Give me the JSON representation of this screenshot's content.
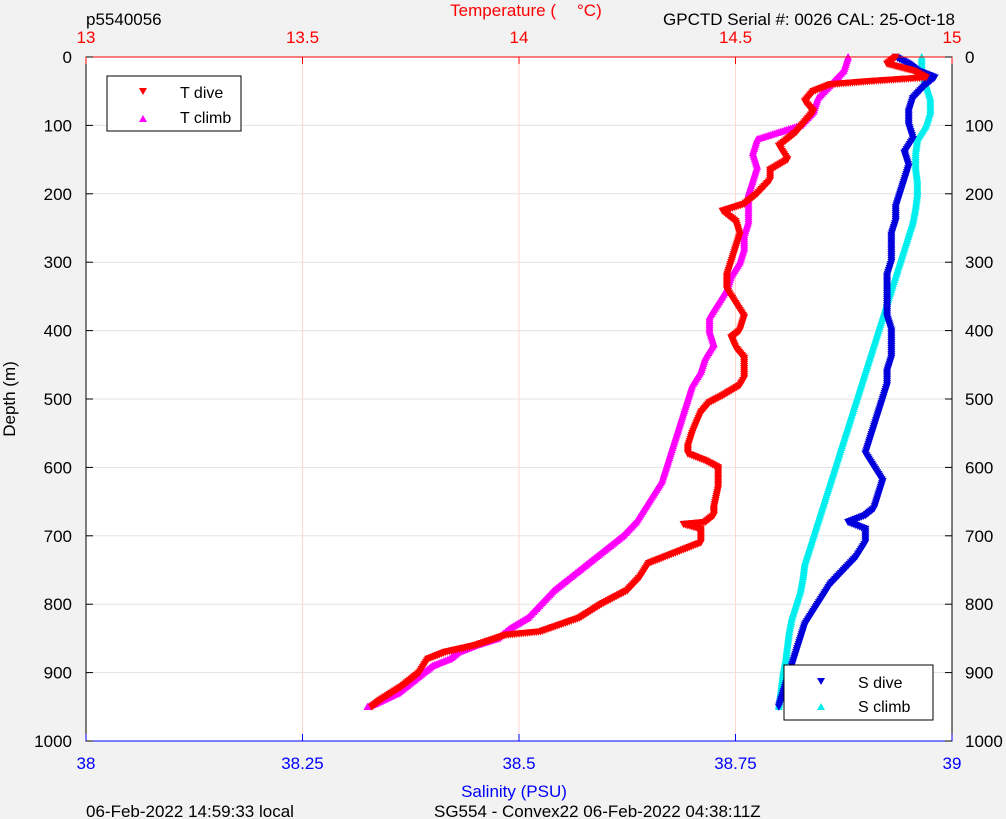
{
  "header": {
    "left_id": "p5540056",
    "right_info": "GPCTD Serial #: 0026 CAL: 25-Oct-18"
  },
  "footer": {
    "left": "06-Feb-2022 14:59:33 local",
    "center": "SG554 - Convex22 06-Feb-2022 04:38:11Z"
  },
  "colors": {
    "t_dive": "#ff0000",
    "t_climb": "#ff00ff",
    "s_dive": "#0000dd",
    "s_climb": "#00eeee",
    "temp_axis": "#ff0000",
    "sal_axis": "#0000ff",
    "temp_grid": "#ffd6d6",
    "depth_grid": "#e3e3e3"
  },
  "chart_data": {
    "type": "scatter",
    "ylabel": "Depth (m)",
    "ylim": [
      0,
      1000
    ],
    "y_reversed": true,
    "y_ticks": [
      0,
      100,
      200,
      300,
      400,
      500,
      600,
      700,
      800,
      900,
      1000
    ],
    "top_axis": {
      "label_left": "Temperature (",
      "label_right": "°C)",
      "lim": [
        13,
        15
      ],
      "ticks": [
        13,
        13.5,
        14,
        14.5,
        15
      ],
      "tick_labels": [
        "13",
        "13.5",
        "14",
        "14.5",
        "15"
      ]
    },
    "bottom_axis": {
      "label": "Salinity (PSU)",
      "lim": [
        38,
        39
      ],
      "ticks": [
        38,
        38.25,
        38.5,
        38.75,
        39
      ],
      "tick_labels": [
        "38",
        "38.25",
        "38.5",
        "38.75",
        "39"
      ]
    },
    "legend_temperature": {
      "placement": "top-left",
      "entries": [
        "T dive",
        "T climb"
      ]
    },
    "legend_salinity": {
      "placement": "bottom-right",
      "entries": [
        "S dive",
        "S climb"
      ]
    },
    "series": [
      {
        "name": "T dive",
        "axis": "temperature",
        "marker": "triangle-down",
        "points": [
          [
            14.87,
            0
          ],
          [
            14.85,
            10
          ],
          [
            14.91,
            20
          ],
          [
            14.94,
            30
          ],
          [
            14.82,
            35
          ],
          [
            14.72,
            40
          ],
          [
            14.68,
            50
          ],
          [
            14.66,
            65
          ],
          [
            14.68,
            80
          ],
          [
            14.64,
            110
          ],
          [
            14.6,
            130
          ],
          [
            14.62,
            150
          ],
          [
            14.58,
            165
          ],
          [
            14.58,
            180
          ],
          [
            14.55,
            200
          ],
          [
            14.52,
            215
          ],
          [
            14.47,
            225
          ],
          [
            14.5,
            240
          ],
          [
            14.51,
            260
          ],
          [
            14.5,
            280
          ],
          [
            14.49,
            300
          ],
          [
            14.48,
            320
          ],
          [
            14.48,
            340
          ],
          [
            14.5,
            360
          ],
          [
            14.52,
            380
          ],
          [
            14.51,
            400
          ],
          [
            14.49,
            410
          ],
          [
            14.5,
            425
          ],
          [
            14.52,
            440
          ],
          [
            14.52,
            470
          ],
          [
            14.51,
            480
          ],
          [
            14.47,
            495
          ],
          [
            14.44,
            505
          ],
          [
            14.42,
            520
          ],
          [
            14.4,
            550
          ],
          [
            14.39,
            570
          ],
          [
            14.39,
            580
          ],
          [
            14.43,
            590
          ],
          [
            14.46,
            600
          ],
          [
            14.46,
            630
          ],
          [
            14.45,
            660
          ],
          [
            14.45,
            670
          ],
          [
            14.43,
            680
          ],
          [
            14.38,
            683
          ],
          [
            14.42,
            690
          ],
          [
            14.42,
            710
          ],
          [
            14.38,
            720
          ],
          [
            14.3,
            740
          ],
          [
            14.28,
            760
          ],
          [
            14.25,
            780
          ],
          [
            14.19,
            800
          ],
          [
            14.14,
            820
          ],
          [
            14.05,
            840
          ],
          [
            13.97,
            845
          ],
          [
            13.9,
            860
          ],
          [
            13.83,
            870
          ],
          [
            13.79,
            880
          ],
          [
            13.77,
            900
          ],
          [
            13.73,
            920
          ],
          [
            13.68,
            940
          ],
          [
            13.66,
            950
          ]
        ]
      },
      {
        "name": "T climb",
        "axis": "temperature",
        "marker": "triangle-up",
        "points": [
          [
            14.76,
            0
          ],
          [
            14.75,
            20
          ],
          [
            14.72,
            40
          ],
          [
            14.69,
            60
          ],
          [
            14.68,
            80
          ],
          [
            14.65,
            100
          ],
          [
            14.6,
            110
          ],
          [
            14.55,
            120
          ],
          [
            14.54,
            140
          ],
          [
            14.55,
            160
          ],
          [
            14.54,
            180
          ],
          [
            14.53,
            200
          ],
          [
            14.53,
            240
          ],
          [
            14.52,
            260
          ],
          [
            14.52,
            280
          ],
          [
            14.51,
            300
          ],
          [
            14.49,
            320
          ],
          [
            14.48,
            340
          ],
          [
            14.46,
            360
          ],
          [
            14.44,
            380
          ],
          [
            14.44,
            400
          ],
          [
            14.45,
            420
          ],
          [
            14.43,
            440
          ],
          [
            14.42,
            460
          ],
          [
            14.4,
            480
          ],
          [
            14.39,
            500
          ],
          [
            14.38,
            520
          ],
          [
            14.37,
            540
          ],
          [
            14.36,
            560
          ],
          [
            14.35,
            580
          ],
          [
            14.34,
            600
          ],
          [
            14.33,
            620
          ],
          [
            14.31,
            640
          ],
          [
            14.29,
            660
          ],
          [
            14.27,
            680
          ],
          [
            14.24,
            700
          ],
          [
            14.2,
            720
          ],
          [
            14.16,
            740
          ],
          [
            14.12,
            760
          ],
          [
            14.08,
            780
          ],
          [
            14.05,
            800
          ],
          [
            14.02,
            820
          ],
          [
            13.98,
            835
          ],
          [
            13.95,
            850
          ],
          [
            13.9,
            860
          ],
          [
            13.86,
            870
          ],
          [
            13.84,
            880
          ],
          [
            13.8,
            890
          ],
          [
            13.76,
            910
          ],
          [
            13.72,
            930
          ],
          [
            13.67,
            945
          ],
          [
            13.65,
            950
          ]
        ]
      },
      {
        "name": "S dive",
        "axis": "salinity",
        "marker": "triangle-down",
        "points": [
          [
            38.935,
            0
          ],
          [
            38.95,
            10
          ],
          [
            38.96,
            20
          ],
          [
            38.98,
            30
          ],
          [
            38.97,
            40
          ],
          [
            38.955,
            60
          ],
          [
            38.95,
            80
          ],
          [
            38.95,
            100
          ],
          [
            38.955,
            120
          ],
          [
            38.945,
            140
          ],
          [
            38.95,
            160
          ],
          [
            38.945,
            180
          ],
          [
            38.94,
            200
          ],
          [
            38.935,
            220
          ],
          [
            38.935,
            240
          ],
          [
            38.93,
            260
          ],
          [
            38.93,
            280
          ],
          [
            38.93,
            300
          ],
          [
            38.925,
            320
          ],
          [
            38.925,
            340
          ],
          [
            38.925,
            360
          ],
          [
            38.925,
            380
          ],
          [
            38.93,
            400
          ],
          [
            38.93,
            420
          ],
          [
            38.93,
            440
          ],
          [
            38.925,
            460
          ],
          [
            38.925,
            480
          ],
          [
            38.92,
            500
          ],
          [
            38.915,
            520
          ],
          [
            38.91,
            540
          ],
          [
            38.905,
            560
          ],
          [
            38.9,
            580
          ],
          [
            38.91,
            600
          ],
          [
            38.92,
            620
          ],
          [
            38.915,
            640
          ],
          [
            38.91,
            660
          ],
          [
            38.9,
            670
          ],
          [
            38.88,
            680
          ],
          [
            38.9,
            690
          ],
          [
            38.9,
            710
          ],
          [
            38.89,
            730
          ],
          [
            38.875,
            750
          ],
          [
            38.86,
            770
          ],
          [
            38.85,
            790
          ],
          [
            38.84,
            810
          ],
          [
            38.83,
            830
          ],
          [
            38.825,
            850
          ],
          [
            38.82,
            870
          ],
          [
            38.815,
            890
          ],
          [
            38.81,
            910
          ],
          [
            38.805,
            930
          ],
          [
            38.8,
            950
          ]
        ]
      },
      {
        "name": "S climb",
        "axis": "salinity",
        "marker": "triangle-up",
        "points": [
          [
            38.965,
            0
          ],
          [
            38.965,
            20
          ],
          [
            38.97,
            40
          ],
          [
            38.975,
            60
          ],
          [
            38.975,
            80
          ],
          [
            38.97,
            100
          ],
          [
            38.96,
            120
          ],
          [
            38.958,
            140
          ],
          [
            38.958,
            160
          ],
          [
            38.96,
            180
          ],
          [
            38.96,
            200
          ],
          [
            38.958,
            220
          ],
          [
            38.955,
            240
          ],
          [
            38.95,
            260
          ],
          [
            38.945,
            280
          ],
          [
            38.94,
            300
          ],
          [
            38.935,
            320
          ],
          [
            38.93,
            340
          ],
          [
            38.925,
            360
          ],
          [
            38.92,
            380
          ],
          [
            38.915,
            400
          ],
          [
            38.91,
            420
          ],
          [
            38.905,
            440
          ],
          [
            38.9,
            460
          ],
          [
            38.895,
            480
          ],
          [
            38.89,
            500
          ],
          [
            38.885,
            520
          ],
          [
            38.88,
            540
          ],
          [
            38.875,
            560
          ],
          [
            38.87,
            580
          ],
          [
            38.865,
            600
          ],
          [
            38.86,
            620
          ],
          [
            38.855,
            640
          ],
          [
            38.85,
            660
          ],
          [
            38.845,
            680
          ],
          [
            38.84,
            700
          ],
          [
            38.835,
            720
          ],
          [
            38.83,
            740
          ],
          [
            38.828,
            760
          ],
          [
            38.825,
            780
          ],
          [
            38.82,
            800
          ],
          [
            38.815,
            820
          ],
          [
            38.812,
            840
          ],
          [
            38.81,
            860
          ],
          [
            38.808,
            880
          ],
          [
            38.805,
            900
          ],
          [
            38.803,
            920
          ],
          [
            38.801,
            940
          ],
          [
            38.8,
            950
          ]
        ]
      }
    ]
  }
}
